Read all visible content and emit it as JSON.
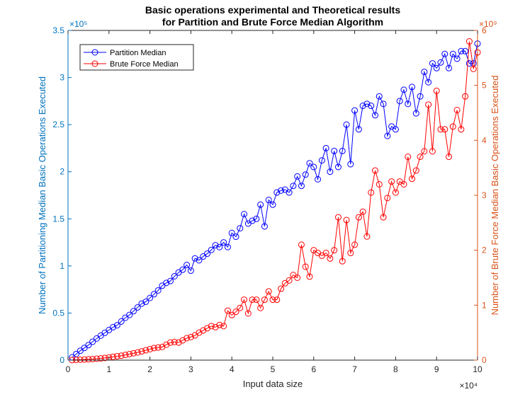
{
  "chart_data": {
    "type": "line",
    "title": [
      "Basic operations experimental and Theoretical results",
      "for Partition and Brute Force Median Algorithm"
    ],
    "xlabel": "Input data size",
    "ylabel_left": "Number of Partitioning Median Basic Operations Executed",
    "ylabel_right": "Number of Brute Force Median Basic Operations Executed",
    "x_exponent": "×10⁴",
    "y_left_exponent": "×10⁵",
    "y_right_exponent": "×10⁹",
    "xlim": [
      0,
      100000
    ],
    "ylim_left": [
      0,
      350000
    ],
    "ylim_right": [
      0,
      6000000000
    ],
    "x_ticks": [
      0,
      10000,
      20000,
      30000,
      40000,
      50000,
      60000,
      70000,
      80000,
      90000,
      100000
    ],
    "x_tick_labels": [
      "0",
      "1",
      "2",
      "3",
      "4",
      "5",
      "6",
      "7",
      "8",
      "9",
      "10"
    ],
    "y_left_ticks": [
      0,
      50000,
      100000,
      150000,
      200000,
      250000,
      300000,
      350000
    ],
    "y_left_tick_labels": [
      "0",
      "0.5",
      "1",
      "1.5",
      "2",
      "2.5",
      "3",
      "3.5"
    ],
    "y_right_ticks": [
      0,
      1000000000,
      2000000000,
      3000000000,
      4000000000,
      5000000000,
      6000000000
    ],
    "y_right_tick_labels": [
      "0",
      "1",
      "2",
      "3",
      "4",
      "5",
      "6"
    ],
    "legend_placement": "top-left",
    "grid": false,
    "colors": {
      "left_axis": "#0072BD",
      "right_axis": "#D95319",
      "series1": "#0000FF",
      "series2": "#FF0000"
    },
    "series": [
      {
        "name": "Partition Median",
        "axis": "left",
        "x": [
          1000,
          2000,
          3000,
          4000,
          5000,
          6000,
          7000,
          8000,
          9000,
          10000,
          11000,
          12000,
          13000,
          14000,
          15000,
          16000,
          17000,
          18000,
          19000,
          20000,
          21000,
          22000,
          23000,
          24000,
          25000,
          26000,
          27000,
          28000,
          29000,
          30000,
          31000,
          32000,
          33000,
          34000,
          35000,
          36000,
          37000,
          38000,
          39000,
          40000,
          41000,
          42000,
          43000,
          44000,
          45000,
          46000,
          47000,
          48000,
          49000,
          50000,
          51000,
          52000,
          53000,
          54000,
          55000,
          56000,
          57000,
          58000,
          59000,
          60000,
          61000,
          62000,
          63000,
          64000,
          65000,
          66000,
          67000,
          68000,
          69000,
          70000,
          71000,
          72000,
          73000,
          74000,
          75000,
          76000,
          77000,
          78000,
          79000,
          80000,
          81000,
          82000,
          83000,
          84000,
          85000,
          86000,
          87000,
          88000,
          89000,
          90000,
          91000,
          92000,
          93000,
          94000,
          95000,
          96000,
          97000,
          98000,
          99000,
          100000
        ],
        "values": [
          3000,
          6500,
          10000,
          13000,
          16000,
          19500,
          23000,
          26000,
          29000,
          32000,
          35000,
          37000,
          41000,
          45000,
          48000,
          52000,
          56000,
          60000,
          62000,
          66000,
          70000,
          74000,
          79000,
          82000,
          84000,
          89000,
          93000,
          96000,
          101000,
          95000,
          108000,
          106000,
          110000,
          113000,
          117000,
          122000,
          120000,
          125000,
          120000,
          135000,
          131000,
          140000,
          155000,
          145000,
          148000,
          150000,
          165000,
          142000,
          170000,
          165000,
          178000,
          180000,
          181000,
          178000,
          185000,
          195000,
          185000,
          197000,
          209000,
          205000,
          192000,
          212000,
          225000,
          200000,
          222000,
          205000,
          222000,
          250000,
          208000,
          265000,
          245000,
          270000,
          272000,
          270000,
          260000,
          280000,
          272000,
          238000,
          248000,
          245000,
          275000,
          287000,
          272000,
          290000,
          262000,
          280000,
          306000,
          295000,
          315000,
          310000,
          316000,
          325000,
          310000,
          325000,
          320000,
          328000,
          328000,
          315000,
          315000,
          336000
        ]
      },
      {
        "name": "Brute Force Median",
        "axis": "right",
        "x": [
          1000,
          2000,
          3000,
          4000,
          5000,
          6000,
          7000,
          8000,
          9000,
          10000,
          11000,
          12000,
          13000,
          14000,
          15000,
          16000,
          17000,
          18000,
          19000,
          20000,
          21000,
          22000,
          23000,
          24000,
          25000,
          26000,
          27000,
          28000,
          29000,
          30000,
          31000,
          32000,
          33000,
          34000,
          35000,
          36000,
          37000,
          38000,
          39000,
          40000,
          41000,
          42000,
          43000,
          44000,
          45000,
          46000,
          47000,
          48000,
          49000,
          50000,
          51000,
          52000,
          53000,
          54000,
          55000,
          56000,
          57000,
          58000,
          59000,
          60000,
          61000,
          62000,
          63000,
          64000,
          65000,
          66000,
          67000,
          68000,
          69000,
          70000,
          71000,
          72000,
          73000,
          74000,
          75000,
          76000,
          77000,
          78000,
          79000,
          80000,
          81000,
          82000,
          83000,
          84000,
          85000,
          86000,
          87000,
          88000,
          89000,
          90000,
          91000,
          92000,
          93000,
          94000,
          95000,
          96000,
          97000,
          98000,
          99000,
          100000
        ],
        "values": [
          1000000,
          5000000,
          8000000,
          12000000,
          16000000,
          20000000,
          26000000,
          32000000,
          40000000,
          50000000,
          60000000,
          70000000,
          80000000,
          95000000,
          110000000,
          125000000,
          140000000,
          160000000,
          180000000,
          200000000,
          220000000,
          230000000,
          240000000,
          280000000,
          320000000,
          330000000,
          320000000,
          360000000,
          400000000,
          420000000,
          450000000,
          500000000,
          540000000,
          580000000,
          620000000,
          600000000,
          640000000,
          620000000,
          900000000,
          820000000,
          880000000,
          950000000,
          1100000000,
          850000000,
          1100000000,
          1100000000,
          950000000,
          1100000000,
          1250000000,
          1100000000,
          1100000000,
          1300000000,
          1400000000,
          1450000000,
          1550000000,
          1500000000,
          2100000000,
          1700000000,
          1520000000,
          2000000000,
          1950000000,
          1900000000,
          1950000000,
          1850000000,
          2000000000,
          2600000000,
          1800000000,
          2550000000,
          1950000000,
          2100000000,
          2600000000,
          2700000000,
          2250000000,
          3050000000,
          3450000000,
          3200000000,
          2600000000,
          2950000000,
          3250000000,
          3050000000,
          3250000000,
          3200000000,
          3700000000,
          3300000000,
          3450000000,
          3700000000,
          3800000000,
          4650000000,
          3800000000,
          4900000000,
          4200000000,
          4200000000,
          3700000000,
          4250000000,
          4550000000,
          4200000000,
          4800000000,
          5800000000,
          5300000000,
          5600000000
        ]
      }
    ]
  }
}
